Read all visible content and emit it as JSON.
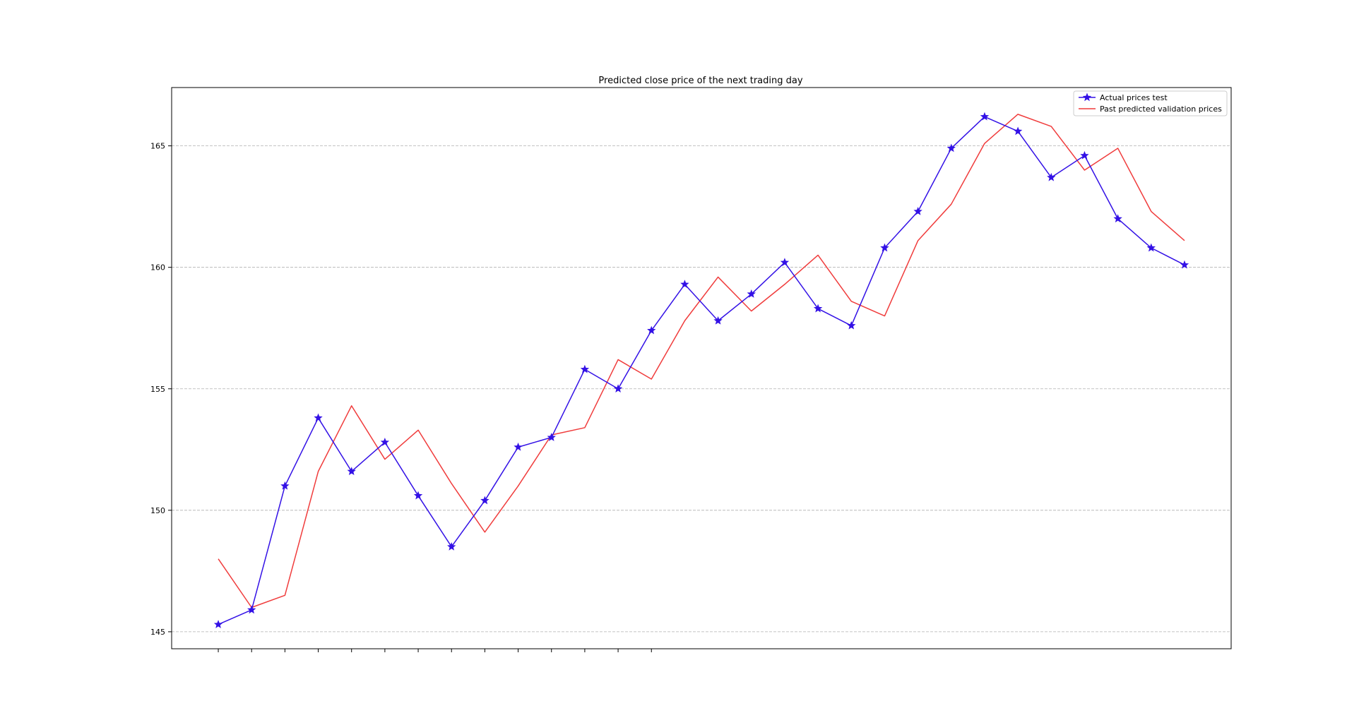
{
  "chart_data": {
    "type": "line",
    "title": "Predicted close price of the next trading day",
    "xlabel": "",
    "ylabel": "",
    "ylim": [
      144.3,
      167.4
    ],
    "yticks": [
      145,
      150,
      155,
      160,
      165
    ],
    "xlim": [
      -1.4,
      30.4
    ],
    "xticks": [
      0,
      1,
      2,
      3,
      4,
      5,
      6,
      7,
      8,
      9,
      10,
      11,
      12,
      13
    ],
    "grid": "y-dashed",
    "legend_position": "top-right",
    "x": [
      0,
      1,
      2,
      3,
      4,
      5,
      6,
      7,
      8,
      9,
      10,
      11,
      12,
      13,
      14,
      15,
      16,
      17,
      18,
      19,
      20,
      21,
      22,
      23,
      24,
      25,
      26,
      27,
      28,
      29
    ],
    "series": [
      {
        "name": "Actual prices test",
        "color": "#3311e6",
        "marker": "star",
        "values": [
          145.3,
          145.9,
          151.0,
          153.8,
          151.6,
          152.8,
          150.6,
          148.5,
          150.4,
          152.6,
          153.0,
          155.8,
          155.0,
          157.4,
          159.3,
          157.8,
          158.9,
          160.2,
          158.3,
          157.6,
          160.8,
          162.3,
          164.9,
          166.2,
          165.6,
          163.7,
          164.6,
          162.0,
          160.8,
          160.1
        ]
      },
      {
        "name": "Past predicted validation prices",
        "color": "#f03c3c",
        "marker": "none",
        "values": [
          148.0,
          146.0,
          146.5,
          151.6,
          154.3,
          152.1,
          153.3,
          151.1,
          149.1,
          151.0,
          153.1,
          153.4,
          156.2,
          155.4,
          157.8,
          159.6,
          158.2,
          159.3,
          160.5,
          158.6,
          158.0,
          161.1,
          162.6,
          165.1,
          166.3,
          165.8,
          164.0,
          164.9,
          162.3,
          161.1
        ]
      }
    ]
  }
}
